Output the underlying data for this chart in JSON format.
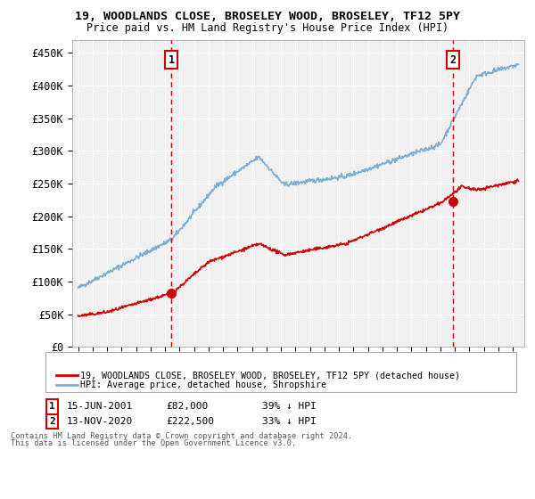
{
  "title": "19, WOODLANDS CLOSE, BROSELEY WOOD, BROSELEY, TF12 5PY",
  "subtitle": "Price paid vs. HM Land Registry's House Price Index (HPI)",
  "ylabel_ticks": [
    "£0",
    "£50K",
    "£100K",
    "£150K",
    "£200K",
    "£250K",
    "£300K",
    "£350K",
    "£400K",
    "£450K"
  ],
  "ytick_values": [
    0,
    50000,
    100000,
    150000,
    200000,
    250000,
    300000,
    350000,
    400000,
    450000
  ],
  "ylim": [
    0,
    470000
  ],
  "xlim_start": 1994.6,
  "xlim_end": 2025.8,
  "sale1_date": 2001.45,
  "sale1_price": 82000,
  "sale2_date": 2020.87,
  "sale2_price": 222500,
  "red_color": "#cc0000",
  "blue_color": "#7bafd4",
  "bg_color": "#f0f0f0",
  "grid_color": "#ffffff",
  "legend1": "19, WOODLANDS CLOSE, BROSELEY WOOD, BROSELEY, TF12 5PY (detached house)",
  "legend2": "HPI: Average price, detached house, Shropshire",
  "annotation1_label": "1",
  "annotation1_date": "15-JUN-2001",
  "annotation1_price": "£82,000",
  "annotation1_hpi": "39% ↓ HPI",
  "annotation2_label": "2",
  "annotation2_date": "13-NOV-2020",
  "annotation2_price": "£222,500",
  "annotation2_hpi": "33% ↓ HPI",
  "footer1": "Contains HM Land Registry data © Crown copyright and database right 2024.",
  "footer2": "This data is licensed under the Open Government Licence v3.0."
}
